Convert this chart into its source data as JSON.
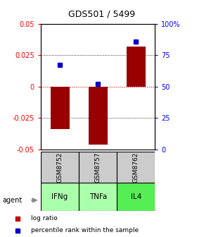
{
  "title": "GDS501 / 5499",
  "samples": [
    "GSM8752",
    "GSM8757",
    "GSM8762"
  ],
  "agents": [
    "IFNg",
    "TNFa",
    "IL4"
  ],
  "log_ratios": [
    -0.034,
    -0.046,
    0.032
  ],
  "percentile_ranks": [
    0.67,
    0.52,
    0.86
  ],
  "ylim_left": [
    -0.05,
    0.05
  ],
  "ylim_right": [
    0.0,
    1.0
  ],
  "yticks_left": [
    -0.05,
    -0.025,
    0.0,
    0.025,
    0.05
  ],
  "ytick_labels_left": [
    "-0.05",
    "-0.025",
    "0",
    "0.025",
    "0.05"
  ],
  "yticks_right": [
    0.0,
    0.25,
    0.5,
    0.75,
    1.0
  ],
  "ytick_labels_right": [
    "0",
    "25",
    "50",
    "75",
    "100%"
  ],
  "bar_color": "#990000",
  "dot_color": "#0000CC",
  "zero_line_color": "#CC0000",
  "agent_colors": [
    "#AAFFAA",
    "#AAFFAA",
    "#55EE55"
  ],
  "sample_box_color": "#CCCCCC",
  "legend_bar_color": "#CC0000",
  "legend_dot_color": "#0000CC"
}
